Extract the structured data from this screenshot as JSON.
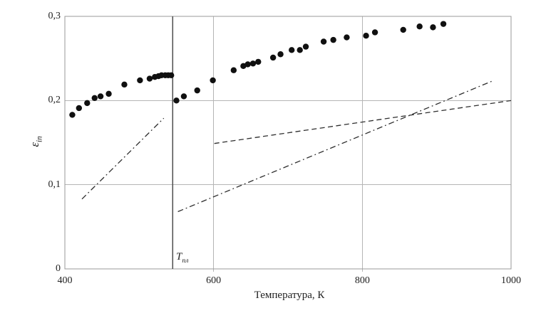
{
  "chart_data": {
    "type": "scatter",
    "title": "",
    "xlabel": "Температура, К",
    "ylabel_symbol": "ε",
    "ylabel_subscript": "in",
    "xlim": [
      400,
      1000
    ],
    "ylim": [
      0,
      0.3
    ],
    "grid": {
      "x_values": [
        600,
        800
      ],
      "y_values": [
        0.1,
        0.2
      ]
    },
    "x_ticks": [
      {
        "value": 400,
        "label": "400"
      },
      {
        "value": 600,
        "label": "600"
      },
      {
        "value": 800,
        "label": "800"
      },
      {
        "value": 1000,
        "label": "1000"
      }
    ],
    "y_ticks": [
      {
        "value": 0,
        "label": "0"
      },
      {
        "value": 0.1,
        "label": "0,1"
      },
      {
        "value": 0.2,
        "label": "0,2"
      },
      {
        "value": 0.3,
        "label": "0,3"
      }
    ],
    "melting_line": {
      "x": 545,
      "label_symbol": "T",
      "label_subscript": "пл"
    },
    "colors": {
      "point": "#101010",
      "line": "#2e2e2e",
      "axis": "#999999",
      "grid": "#b5b5b5",
      "melt_line": "#4d4d4d"
    },
    "series": [
      {
        "name": "experimental-emissivity",
        "type": "scatter",
        "marker": "filled-circle",
        "color": "#101010",
        "points": [
          [
            410,
            0.183
          ],
          [
            419,
            0.191
          ],
          [
            430,
            0.197
          ],
          [
            440,
            0.203
          ],
          [
            448,
            0.205
          ],
          [
            459,
            0.208
          ],
          [
            480,
            0.219
          ],
          [
            501,
            0.224
          ],
          [
            514,
            0.226
          ],
          [
            521,
            0.228
          ],
          [
            526,
            0.229
          ],
          [
            530,
            0.23
          ],
          [
            535,
            0.23
          ],
          [
            539,
            0.23
          ],
          [
            543,
            0.23
          ],
          [
            550,
            0.2
          ],
          [
            560,
            0.205
          ],
          [
            578,
            0.212
          ],
          [
            599,
            0.224
          ],
          [
            627,
            0.236
          ],
          [
            640,
            0.241
          ],
          [
            646,
            0.243
          ],
          [
            653,
            0.244
          ],
          [
            660,
            0.246
          ],
          [
            680,
            0.251
          ],
          [
            690,
            0.255
          ],
          [
            705,
            0.26
          ],
          [
            716,
            0.26
          ],
          [
            724,
            0.264
          ],
          [
            748,
            0.27
          ],
          [
            761,
            0.272
          ],
          [
            779,
            0.275
          ],
          [
            805,
            0.277
          ],
          [
            817,
            0.281
          ],
          [
            855,
            0.284
          ],
          [
            877,
            0.288
          ],
          [
            895,
            0.287
          ],
          [
            909,
            0.291
          ]
        ]
      },
      {
        "name": "dashdot-solid-phase",
        "type": "line",
        "style": "dashdot",
        "color": "#2e2e2e",
        "points": [
          [
            423,
            0.083
          ],
          [
            533,
            0.179
          ]
        ]
      },
      {
        "name": "dashdot-liquid-phase",
        "type": "line",
        "style": "dashdot",
        "color": "#2e2e2e",
        "points": [
          [
            552,
            0.068
          ],
          [
            977,
            0.224
          ]
        ]
      },
      {
        "name": "dashed-reference",
        "type": "line",
        "style": "dashed",
        "color": "#2e2e2e",
        "points": [
          [
            601,
            0.149
          ],
          [
            1000,
            0.2
          ]
        ]
      }
    ]
  }
}
